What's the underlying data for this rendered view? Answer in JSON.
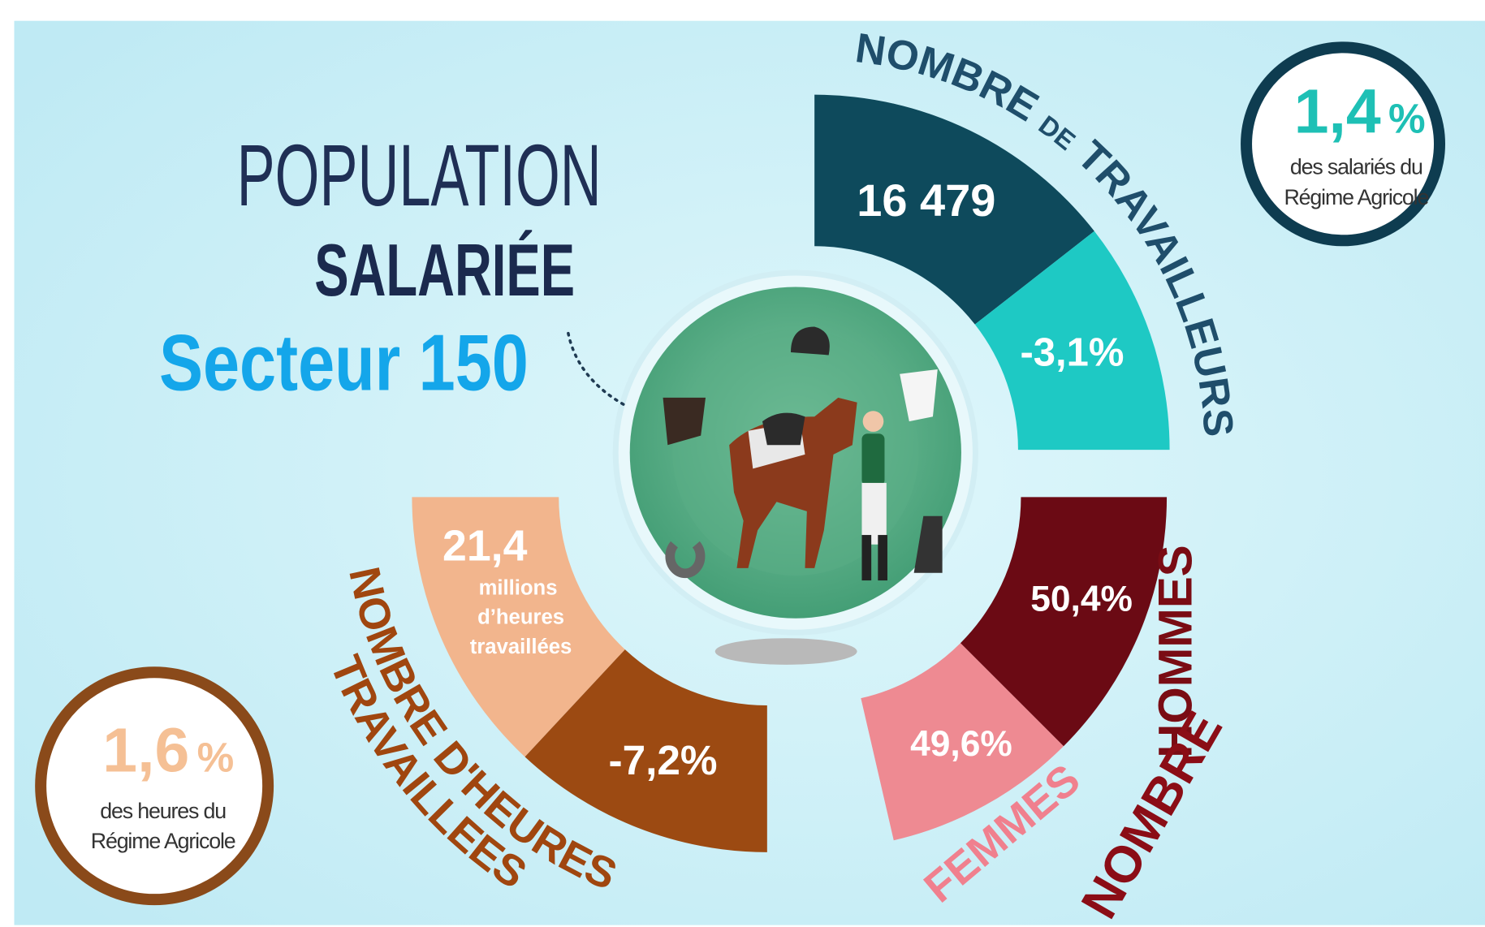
{
  "title": {
    "line1": "POPULATION",
    "line2": "SALARIÉE",
    "line3": "Secteur 150"
  },
  "workers": {
    "heading": [
      "NOMBRE",
      "DE",
      "TRAVAILLEURS"
    ],
    "value": "16 479",
    "change": "-3,1%"
  },
  "hours": {
    "heading_line1": "NOMBRE D'HEURES",
    "heading_line2": "TRAVAILLEES",
    "value": "21,4",
    "unit_lines": [
      "millions",
      "d’heures",
      "travaillées"
    ],
    "change": "-7,2%"
  },
  "gender": {
    "men_pct": "50,4%",
    "women_pct": "49,6%",
    "men_label": "HOMMES",
    "women_label": "FEMMES",
    "heading": "NOMBRE"
  },
  "badges": [
    {
      "value": "1,4",
      "unit": "%",
      "text_lines": [
        "des salariés du",
        "Régime Agricole"
      ]
    },
    {
      "value": "1,6",
      "unit": "%",
      "text_lines": [
        "des heures du",
        "Régime Agricole"
      ]
    }
  ]
}
